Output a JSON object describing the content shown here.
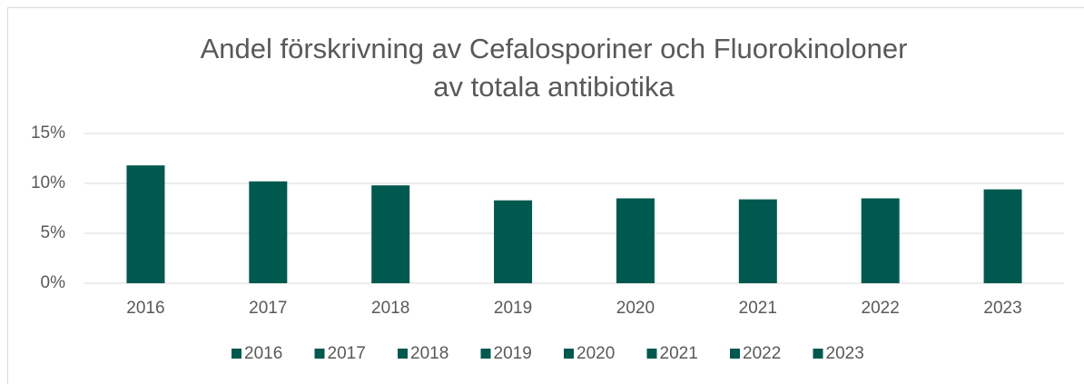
{
  "chart_data": {
    "type": "bar",
    "title": [
      "Andel förskrivning av Cefalosporiner och Fluorokinoloner",
      "av totala antibiotika"
    ],
    "categories": [
      "2016",
      "2017",
      "2018",
      "2019",
      "2020",
      "2021",
      "2022",
      "2023"
    ],
    "values": [
      11.8,
      10.2,
      9.8,
      8.3,
      8.5,
      8.4,
      8.5,
      9.4
    ],
    "color": "#00594f",
    "ylim": [
      0,
      15
    ],
    "yticks": [
      {
        "value": 0,
        "label": "0%"
      },
      {
        "value": 5,
        "label": "5%"
      },
      {
        "value": 10,
        "label": "10%"
      },
      {
        "value": 15,
        "label": "15%"
      }
    ],
    "grid": true,
    "legend": "bottom"
  }
}
